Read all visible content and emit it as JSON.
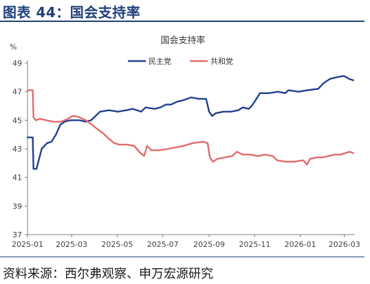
{
  "header": {
    "title": "图表 44：国会支持率"
  },
  "footer": {
    "source": "资料来源：西尔弗观察、申万宏源研究"
  },
  "chart_data": {
    "type": "line",
    "title": "国会支持率",
    "ylabel": "%",
    "ylim": [
      37,
      49
    ],
    "yticks": [
      "49",
      "47",
      "45",
      "43",
      "41",
      "39",
      "37"
    ],
    "xlim": [
      "2025-01-01",
      "2026-03-15"
    ],
    "xticks": [
      "2025-01",
      "2025-03",
      "2025-05",
      "2025-07",
      "2025-09",
      "2025-11",
      "2026-01",
      "2026-03"
    ],
    "grid": false,
    "legend": "top-center",
    "series": [
      {
        "name": "民主党",
        "color": "#1f3f8f",
        "points": [
          [
            "2025-01-01",
            43.8
          ],
          [
            "2025-01-08",
            43.8
          ],
          [
            "2025-01-09",
            41.6
          ],
          [
            "2025-01-13",
            41.6
          ],
          [
            "2025-01-16",
            42.2
          ],
          [
            "2025-01-20",
            43.0
          ],
          [
            "2025-01-27",
            43.4
          ],
          [
            "2025-02-02",
            43.5
          ],
          [
            "2025-02-08",
            44.0
          ],
          [
            "2025-02-14",
            44.7
          ],
          [
            "2025-02-20",
            44.9
          ],
          [
            "2025-02-27",
            45.0
          ],
          [
            "2025-03-05",
            45.0
          ],
          [
            "2025-03-12",
            45.0
          ],
          [
            "2025-03-20",
            44.9
          ],
          [
            "2025-03-27",
            45.0
          ],
          [
            "2025-04-02",
            45.3
          ],
          [
            "2025-04-08",
            45.6
          ],
          [
            "2025-04-20",
            45.7
          ],
          [
            "2025-05-02",
            45.6
          ],
          [
            "2025-05-13",
            45.7
          ],
          [
            "2025-05-22",
            45.8
          ],
          [
            "2025-06-02",
            45.6
          ],
          [
            "2025-06-08",
            45.9
          ],
          [
            "2025-06-20",
            45.8
          ],
          [
            "2025-06-28",
            45.9
          ],
          [
            "2025-07-05",
            46.1
          ],
          [
            "2025-07-12",
            46.1
          ],
          [
            "2025-07-20",
            46.3
          ],
          [
            "2025-07-28",
            46.4
          ],
          [
            "2025-08-08",
            46.6
          ],
          [
            "2025-08-18",
            46.5
          ],
          [
            "2025-08-28",
            46.5
          ],
          [
            "2025-09-01",
            45.6
          ],
          [
            "2025-09-05",
            45.3
          ],
          [
            "2025-09-10",
            45.5
          ],
          [
            "2025-09-20",
            45.6
          ],
          [
            "2025-09-30",
            45.6
          ],
          [
            "2025-10-10",
            45.7
          ],
          [
            "2025-10-16",
            45.9
          ],
          [
            "2025-10-24",
            45.8
          ],
          [
            "2025-10-28",
            46.0
          ],
          [
            "2025-11-02",
            46.4
          ],
          [
            "2025-11-08",
            46.9
          ],
          [
            "2025-11-20",
            46.9
          ],
          [
            "2025-12-02",
            47.0
          ],
          [
            "2025-12-12",
            46.9
          ],
          [
            "2025-12-16",
            47.1
          ],
          [
            "2025-12-30",
            47.0
          ],
          [
            "2026-01-10",
            47.1
          ],
          [
            "2026-01-25",
            47.2
          ],
          [
            "2026-02-01",
            47.6
          ],
          [
            "2026-02-10",
            47.9
          ],
          [
            "2026-02-18",
            48.0
          ],
          [
            "2026-02-28",
            48.1
          ],
          [
            "2026-03-04",
            48.0
          ],
          [
            "2026-03-07",
            47.9
          ],
          [
            "2026-03-13",
            47.8
          ]
        ]
      },
      {
        "name": "共和党",
        "color": "#e26a6a",
        "points": [
          [
            "2025-01-01",
            47.1
          ],
          [
            "2025-01-06",
            47.1
          ],
          [
            "2025-01-08",
            47.1
          ],
          [
            "2025-01-09",
            45.2
          ],
          [
            "2025-01-12",
            45.0
          ],
          [
            "2025-01-18",
            45.1
          ],
          [
            "2025-01-26",
            45.0
          ],
          [
            "2025-02-05",
            44.9
          ],
          [
            "2025-02-15",
            44.9
          ],
          [
            "2025-02-24",
            45.1
          ],
          [
            "2025-03-02",
            45.3
          ],
          [
            "2025-03-06",
            45.3
          ],
          [
            "2025-03-12",
            45.2
          ],
          [
            "2025-03-20",
            45.0
          ],
          [
            "2025-03-28",
            44.7
          ],
          [
            "2025-04-04",
            44.4
          ],
          [
            "2025-04-12",
            44.1
          ],
          [
            "2025-04-20",
            43.7
          ],
          [
            "2025-04-27",
            43.4
          ],
          [
            "2025-05-04",
            43.3
          ],
          [
            "2025-05-14",
            43.3
          ],
          [
            "2025-05-24",
            43.2
          ],
          [
            "2025-06-01",
            42.7
          ],
          [
            "2025-06-06",
            42.5
          ],
          [
            "2025-06-10",
            43.2
          ],
          [
            "2025-06-16",
            42.9
          ],
          [
            "2025-06-26",
            42.9
          ],
          [
            "2025-07-08",
            43.0
          ],
          [
            "2025-07-18",
            43.1
          ],
          [
            "2025-07-28",
            43.2
          ],
          [
            "2025-08-10",
            43.4
          ],
          [
            "2025-08-24",
            43.5
          ],
          [
            "2025-08-30",
            43.4
          ],
          [
            "2025-09-02",
            42.4
          ],
          [
            "2025-09-06",
            42.1
          ],
          [
            "2025-09-12",
            42.3
          ],
          [
            "2025-09-22",
            42.4
          ],
          [
            "2025-10-02",
            42.5
          ],
          [
            "2025-10-08",
            42.8
          ],
          [
            "2025-10-16",
            42.6
          ],
          [
            "2025-10-26",
            42.6
          ],
          [
            "2025-11-05",
            42.5
          ],
          [
            "2025-11-15",
            42.6
          ],
          [
            "2025-11-25",
            42.5
          ],
          [
            "2025-12-01",
            42.2
          ],
          [
            "2025-12-12",
            42.1
          ],
          [
            "2025-12-24",
            42.1
          ],
          [
            "2026-01-05",
            42.2
          ],
          [
            "2026-01-10",
            41.9
          ],
          [
            "2026-01-14",
            42.3
          ],
          [
            "2026-01-22",
            42.4
          ],
          [
            "2026-01-30",
            42.4
          ],
          [
            "2026-02-08",
            42.5
          ],
          [
            "2026-02-16",
            42.6
          ],
          [
            "2026-02-24",
            42.6
          ],
          [
            "2026-03-02",
            42.7
          ],
          [
            "2026-03-08",
            42.8
          ],
          [
            "2026-03-13",
            42.7
          ]
        ]
      }
    ]
  }
}
